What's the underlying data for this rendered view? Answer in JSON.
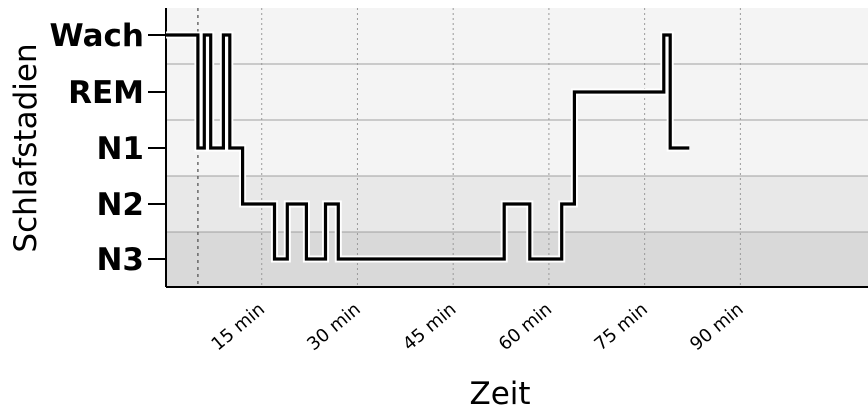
{
  "chart_data": {
    "type": "line",
    "title": "",
    "xlabel": "Zeit",
    "ylabel": "Schlafstadien",
    "y_categories": [
      "N3",
      "N2",
      "N1",
      "REM",
      "Wach"
    ],
    "x_ticks": [
      {
        "value": 15,
        "label": "15 min"
      },
      {
        "value": 30,
        "label": "30 min"
      },
      {
        "value": 45,
        "label": "45 min"
      },
      {
        "value": 60,
        "label": "60 min"
      },
      {
        "value": 75,
        "label": "75 min"
      },
      {
        "value": 90,
        "label": "90 min"
      }
    ],
    "xlim": [
      0,
      110
    ],
    "grid": true,
    "marker_line_x": 5,
    "series": [
      {
        "x": [
          0,
          5,
          5,
          6,
          6,
          7,
          7,
          9,
          9,
          10,
          10,
          12,
          12,
          17,
          17,
          19,
          19,
          22,
          22,
          25,
          25,
          27,
          27,
          53,
          53,
          57,
          57,
          62,
          62,
          64,
          64,
          78,
          78,
          79,
          79,
          82
        ],
        "y": [
          "Wach",
          "Wach",
          "N1",
          "N1",
          "Wach",
          "Wach",
          "N1",
          "N1",
          "Wach",
          "Wach",
          "N1",
          "N1",
          "N2",
          "N2",
          "N3",
          "N3",
          "N2",
          "N2",
          "N3",
          "N3",
          "N2",
          "N2",
          "N3",
          "N3",
          "N2",
          "N2",
          "N3",
          "N3",
          "N2",
          "N2",
          "REM",
          "REM",
          "Wach",
          "Wach",
          "N1",
          "N1"
        ]
      }
    ]
  }
}
